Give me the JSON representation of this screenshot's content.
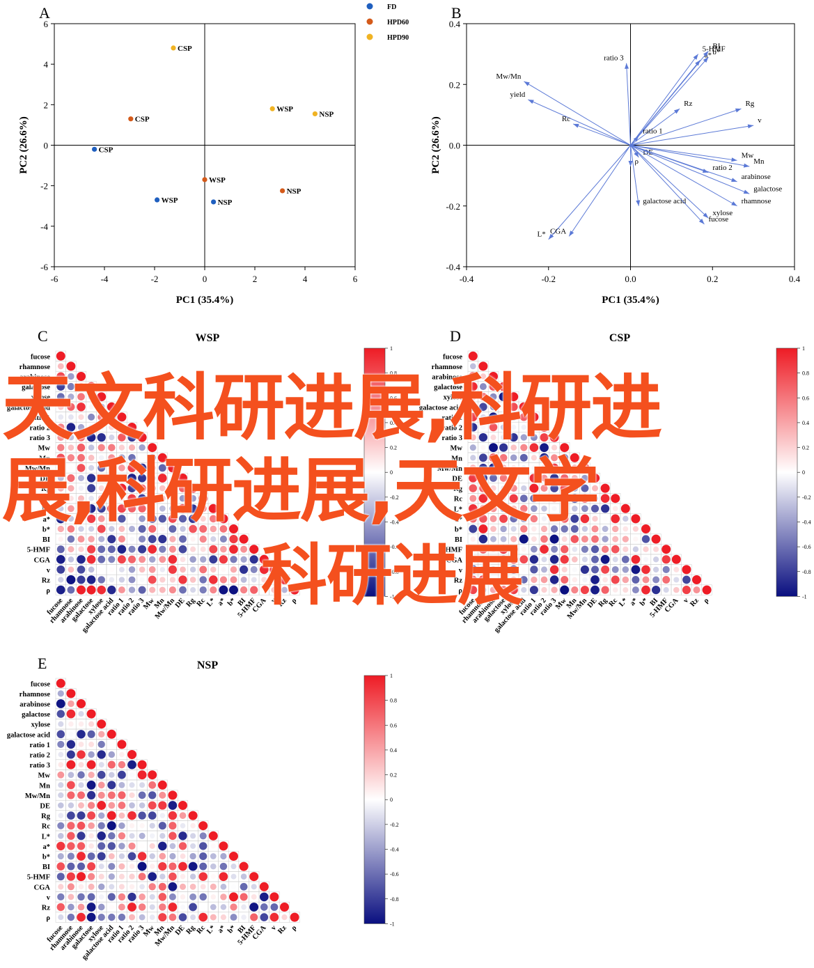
{
  "colors": {
    "fd": "#1f5fbf",
    "hpd60": "#d45a1a",
    "hpd90": "#f0b323",
    "arrow": "#5b79d6",
    "neg": "#0a0f80",
    "pos": "#ee1c25"
  },
  "panels": [
    {
      "letter": "A",
      "title": "",
      "type": "scatter",
      "xlabel": "PC1 (35.4%)",
      "ylabel": "PC2 (26.6%)",
      "xlim": [
        -6,
        6
      ],
      "ylim": [
        -6,
        6
      ],
      "xticks": [
        "-6",
        "-4",
        "-2",
        "0",
        "2",
        "4",
        "6"
      ],
      "yticks": [
        "6",
        "4",
        "2",
        "0",
        "-2",
        "-4",
        "-6"
      ],
      "legend": [
        {
          "name": "FD",
          "color": "#1f5fbf"
        },
        {
          "name": "HPD60",
          "color": "#d45a1a"
        },
        {
          "name": "HPD90",
          "color": "#f0b323"
        }
      ],
      "points": [
        {
          "label": "CSP",
          "x": -4.4,
          "y": -0.2,
          "group": 0
        },
        {
          "label": "WSP",
          "x": -1.9,
          "y": -2.7,
          "group": 0
        },
        {
          "label": "NSP",
          "x": 0.35,
          "y": -2.8,
          "group": 0
        },
        {
          "label": "CSP",
          "x": -2.95,
          "y": 1.3,
          "group": 1
        },
        {
          "label": "WSP",
          "x": 0.0,
          "y": -1.7,
          "group": 1
        },
        {
          "label": "NSP",
          "x": 3.1,
          "y": -2.25,
          "group": 1
        },
        {
          "label": "CSP",
          "x": -1.25,
          "y": 4.8,
          "group": 2
        },
        {
          "label": "WSP",
          "x": 2.7,
          "y": 1.8,
          "group": 2
        },
        {
          "label": "NSP",
          "x": 4.4,
          "y": 1.55,
          "group": 2
        }
      ]
    },
    {
      "letter": "B",
      "title": "",
      "type": "biplot",
      "xlabel": "PC1 (35.4%)",
      "ylabel": "PC2 (26.6%)",
      "xlim": [
        -0.4,
        0.4
      ],
      "ylim": [
        -0.4,
        0.4
      ],
      "xticks": [
        "-0.4",
        "-0.2",
        "0.0",
        "0.2",
        "0.4"
      ],
      "yticks": [
        "0.4",
        "0.2",
        "0.0",
        "-0.2",
        "-0.4"
      ],
      "loadings": [
        {
          "label": "5-HMF",
          "x": 0.165,
          "y": 0.3
        },
        {
          "label": "a*",
          "x": 0.17,
          "y": 0.28
        },
        {
          "label": "BI",
          "x": 0.19,
          "y": 0.31
        },
        {
          "label": "b*",
          "x": 0.19,
          "y": 0.29
        },
        {
          "label": "ratio 3",
          "x": -0.01,
          "y": 0.27
        },
        {
          "label": "Mw/Mn",
          "x": -0.26,
          "y": 0.21
        },
        {
          "label": "yield",
          "x": -0.25,
          "y": 0.15
        },
        {
          "label": "Rc",
          "x": -0.14,
          "y": 0.07
        },
        {
          "label": "Rz",
          "x": 0.12,
          "y": 0.12
        },
        {
          "label": "Rg",
          "x": 0.27,
          "y": 0.12
        },
        {
          "label": "v",
          "x": 0.3,
          "y": 0.065
        },
        {
          "label": "ratio 1",
          "x": 0.02,
          "y": 0.03
        },
        {
          "label": "DE",
          "x": 0.02,
          "y": -0.04
        },
        {
          "label": "ρ",
          "x": 0.0,
          "y": -0.07
        },
        {
          "label": "Mw",
          "x": 0.26,
          "y": -0.05
        },
        {
          "label": "Mn",
          "x": 0.29,
          "y": -0.07
        },
        {
          "label": "ratio 2",
          "x": 0.19,
          "y": -0.09
        },
        {
          "label": "arabinose",
          "x": 0.26,
          "y": -0.12
        },
        {
          "label": "galactose",
          "x": 0.29,
          "y": -0.16
        },
        {
          "label": "galactose acid",
          "x": 0.02,
          "y": -0.2
        },
        {
          "label": "rhamnose",
          "x": 0.26,
          "y": -0.2
        },
        {
          "label": "xylose",
          "x": 0.19,
          "y": -0.24
        },
        {
          "label": "fucose",
          "x": 0.18,
          "y": -0.26
        },
        {
          "label": "L*",
          "x": -0.2,
          "y": -0.31
        },
        {
          "label": "CGA",
          "x": -0.15,
          "y": -0.3
        }
      ]
    },
    {
      "letter": "C",
      "title": "WSP",
      "type": "corr",
      "seed": 11
    },
    {
      "letter": "D",
      "title": "CSP",
      "type": "corr",
      "seed": 29
    },
    {
      "letter": "E",
      "title": "NSP",
      "type": "corr",
      "seed": 53
    }
  ],
  "chart_data": [
    {
      "type": "scatter",
      "series": [
        {
          "name": "FD",
          "points": [
            {
              "label": "CSP",
              "x": -4.4,
              "y": -0.2
            },
            {
              "label": "WSP",
              "x": -1.9,
              "y": -2.7
            },
            {
              "label": "NSP",
              "x": 0.35,
              "y": -2.8
            }
          ]
        },
        {
          "name": "HPD60",
          "points": [
            {
              "label": "CSP",
              "x": -2.95,
              "y": 1.3
            },
            {
              "label": "WSP",
              "x": 0.0,
              "y": -1.7
            },
            {
              "label": "NSP",
              "x": 3.1,
              "y": -2.25
            }
          ]
        },
        {
          "name": "HPD90",
          "points": [
            {
              "label": "CSP",
              "x": -1.25,
              "y": 4.8
            },
            {
              "label": "WSP",
              "x": 2.7,
              "y": 1.8
            },
            {
              "label": "NSP",
              "x": 4.4,
              "y": 1.55
            }
          ]
        }
      ],
      "xlabel": "PC1 (35.4%)",
      "ylabel": "PC2 (26.6%)",
      "xlim": [
        -6,
        6
      ],
      "ylim": [
        -6,
        6
      ]
    },
    {
      "type": "scatter",
      "xlabel": "PC1 (35.4%)",
      "ylabel": "PC2 (26.6%)",
      "xlim": [
        -0.4,
        0.4
      ],
      "ylim": [
        -0.4,
        0.4
      ]
    },
    {
      "type": "heatmap",
      "title": "WSP"
    },
    {
      "type": "heatmap",
      "title": "CSP"
    },
    {
      "type": "heatmap",
      "title": "NSP"
    }
  ],
  "corr_variables": [
    "fucose",
    "rhamnose",
    "arabinose",
    "galactose",
    "xylose",
    "galactose acid",
    "ratio 1",
    "ratio 2",
    "ratio 3",
    "Mw",
    "Mn",
    "Mw/Mn",
    "DE",
    "Rg",
    "Rc",
    "L*",
    "a*",
    "b*",
    "BI",
    "5-HMF",
    "CGA",
    "v",
    "Rz",
    "ρ"
  ],
  "colorbar_ticks": [
    "1",
    "0.8",
    "0.6",
    "0.4",
    "0.2",
    "0",
    "-0.2",
    "-0.4",
    "-0.6",
    "-0.8",
    "-1"
  ],
  "watermark": {
    "line1": "天文科研进展,科研进",
    "line2": "展,科研进展,天文学",
    "line3": "科研进展"
  }
}
